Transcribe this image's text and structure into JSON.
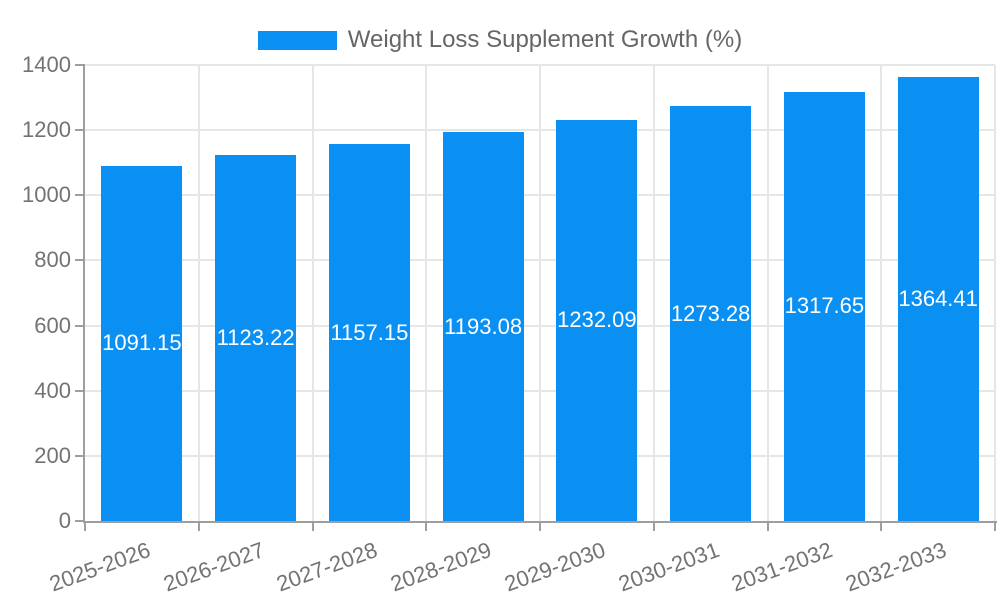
{
  "legend": {
    "label": "Weight Loss Supplement Growth (%)",
    "swatch_color": "#0a8ff2"
  },
  "chart_data": {
    "type": "bar",
    "title": "Weight Loss Supplement Growth (%)",
    "categories": [
      "2025-2026",
      "2026-2027",
      "2027-2028",
      "2028-2029",
      "2029-2030",
      "2030-2031",
      "2031-2032",
      "2032-2033"
    ],
    "values": [
      1091.15,
      1123.22,
      1157.15,
      1193.08,
      1232.09,
      1273.28,
      1317.65,
      1364.41
    ],
    "value_decimals": 2,
    "xlabel": "",
    "ylabel": "",
    "ylim": [
      0,
      1400
    ],
    "yticks": [
      0,
      200,
      400,
      600,
      800,
      1000,
      1200,
      1400
    ],
    "grid": true,
    "legend_position": "top",
    "x_label_rotation_deg": -20,
    "colors": {
      "bar": "#0a8ff2",
      "value_label": "#ffffff",
      "axis": "#9e9e9e",
      "gridline": "#e6e6e6",
      "tick_label": "#737373",
      "legend_text": "#666666",
      "background": "#ffffff"
    }
  }
}
